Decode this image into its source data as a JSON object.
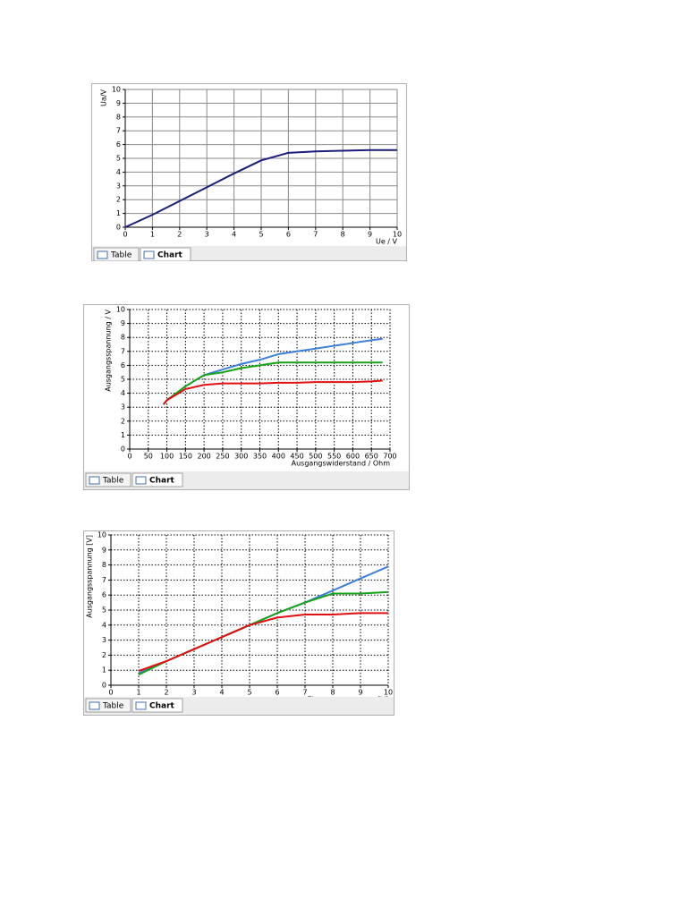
{
  "chart_data": [
    {
      "type": "line",
      "ylabel": "Ua/V",
      "xlabel": "Ue / V",
      "x": [
        0,
        1,
        2,
        3,
        4,
        5,
        6,
        7,
        8,
        9,
        10
      ],
      "series": [
        {
          "color": "#1c1c7a",
          "values": [
            0,
            0.9,
            1.9,
            2.9,
            3.9,
            4.85,
            5.4,
            5.5,
            5.55,
            5.6,
            5.6
          ]
        }
      ],
      "xlim": [
        0,
        10
      ],
      "xticks": [
        0,
        1,
        2,
        3,
        4,
        5,
        6,
        7,
        8,
        9,
        10
      ],
      "ylim": [
        0,
        10
      ],
      "yticks": [
        0,
        1,
        2,
        3,
        4,
        5,
        6,
        7,
        8,
        9,
        10
      ],
      "grid": true,
      "grid_style": "solid",
      "tabs": [
        "Table",
        "Chart"
      ]
    },
    {
      "type": "line",
      "ylabel": "Ausgangsspannung / V",
      "xlabel": "Ausgangswiderstand / Ohm",
      "x": [
        91,
        100,
        150,
        200,
        250,
        300,
        350,
        400,
        450,
        500,
        550,
        600,
        650,
        680
      ],
      "series": [
        {
          "color": "#3d7fd6",
          "values": [
            3.2,
            3.5,
            4.5,
            5.3,
            5.7,
            6.1,
            6.4,
            6.8,
            7.0,
            7.2,
            7.4,
            7.6,
            7.8,
            7.9
          ]
        },
        {
          "color": "#17a317",
          "values": [
            3.2,
            3.5,
            4.5,
            5.3,
            5.5,
            5.8,
            6.0,
            6.2,
            6.2,
            6.2,
            6.2,
            6.2,
            6.2,
            6.2
          ]
        },
        {
          "color": "#e01010",
          "values": [
            3.2,
            3.5,
            4.3,
            4.6,
            4.7,
            4.7,
            4.7,
            4.75,
            4.75,
            4.8,
            4.8,
            4.8,
            4.85,
            4.9
          ]
        }
      ],
      "xlim": [
        0,
        700
      ],
      "xticks": [
        0,
        50,
        100,
        150,
        200,
        250,
        300,
        350,
        400,
        450,
        500,
        550,
        600,
        650,
        700
      ],
      "ylim": [
        0,
        10
      ],
      "yticks": [
        0,
        1,
        2,
        3,
        4,
        5,
        6,
        7,
        8,
        9,
        10
      ],
      "grid": true,
      "grid_style": "dotted",
      "tabs": [
        "Table",
        "Chart"
      ]
    },
    {
      "type": "line",
      "ylabel": "Ausgangsspannung [V]",
      "xlabel": "Eingangsspannung [V]",
      "x": [
        1,
        2,
        3,
        4,
        5,
        6,
        7,
        8,
        9,
        10
      ],
      "series": [
        {
          "color": "#3d7fd6",
          "values": [
            0.8,
            1.6,
            2.4,
            3.2,
            4.0,
            4.8,
            5.5,
            6.3,
            7.1,
            7.9
          ]
        },
        {
          "color": "#17a317",
          "values": [
            0.7,
            1.6,
            2.4,
            3.2,
            4.0,
            4.8,
            5.5,
            6.1,
            6.1,
            6.2
          ]
        },
        {
          "color": "#e01010",
          "values": [
            0.95,
            1.6,
            2.4,
            3.2,
            4.0,
            4.5,
            4.7,
            4.7,
            4.8,
            4.8
          ]
        }
      ],
      "xlim": [
        0,
        10
      ],
      "xticks": [
        0,
        1,
        2,
        3,
        4,
        5,
        6,
        7,
        8,
        9,
        10
      ],
      "ylim": [
        0,
        10
      ],
      "yticks": [
        0,
        1,
        2,
        3,
        4,
        5,
        6,
        7,
        8,
        9,
        10
      ],
      "grid": true,
      "grid_style": "dotted",
      "tabs": [
        "Table",
        "Chart"
      ]
    }
  ]
}
